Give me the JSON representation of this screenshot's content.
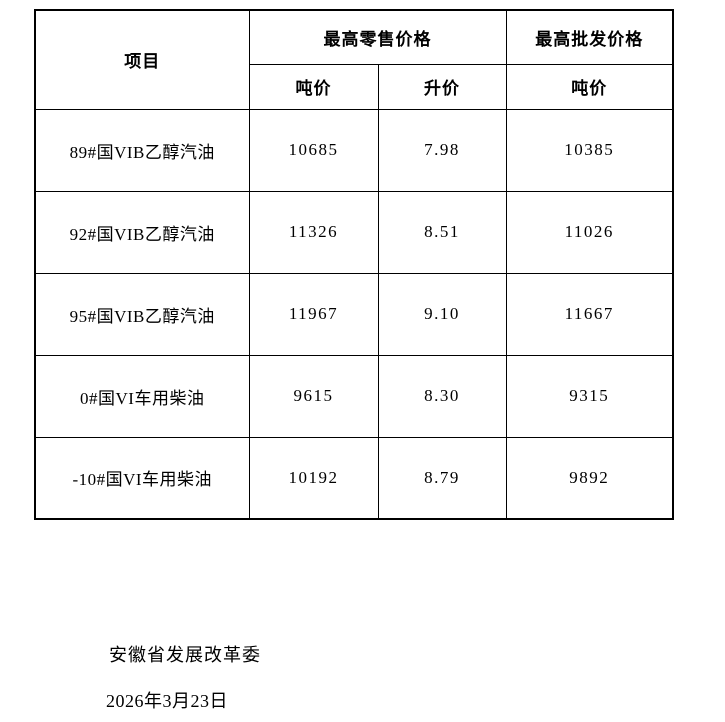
{
  "table": {
    "header": {
      "item_label": "项目",
      "retail_group_label": "最高零售价格",
      "wholesale_group_label": "最高批发价格",
      "retail_ton_label": "吨价",
      "retail_liter_label": "升价",
      "wholesale_ton_label": "吨价"
    },
    "rows": [
      {
        "item": "89#国VIB乙醇汽油",
        "retail_ton": "10685",
        "retail_liter": "7.98",
        "wholesale_ton": "10385"
      },
      {
        "item": "92#国VIB乙醇汽油",
        "retail_ton": "11326",
        "retail_liter": "8.51",
        "wholesale_ton": "11026"
      },
      {
        "item": "95#国VIB乙醇汽油",
        "retail_ton": "11967",
        "retail_liter": "9.10",
        "wholesale_ton": "11667"
      },
      {
        "item": "0#国VI车用柴油",
        "retail_ton": "9615",
        "retail_liter": "8.30",
        "wholesale_ton": "9315"
      },
      {
        "item": "-10#国VI车用柴油",
        "retail_ton": "10192",
        "retail_liter": "8.79",
        "wholesale_ton": "9892"
      }
    ]
  },
  "footer": {
    "issuer": "安徽省发展改革委",
    "date": "2026年3月23日"
  },
  "colors": {
    "border": "#000000",
    "text": "#000000",
    "background": "#ffffff"
  }
}
